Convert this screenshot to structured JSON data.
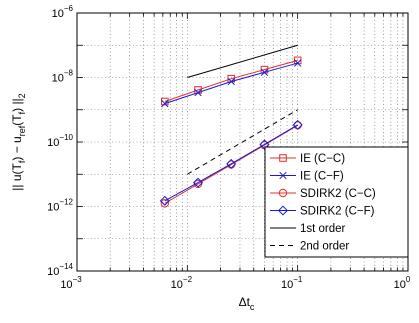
{
  "chart_data": {
    "type": "line",
    "xscale": "log",
    "yscale": "log",
    "xlim": [
      0.001,
      1
    ],
    "ylim": [
      1e-14,
      1e-06
    ],
    "grid": true,
    "legend_position": "lower-right",
    "x_ticks": [
      {
        "value": 0.001,
        "base": "10",
        "exp": "−3"
      },
      {
        "value": 0.01,
        "base": "10",
        "exp": "−2"
      },
      {
        "value": 0.1,
        "base": "10",
        "exp": "−1"
      },
      {
        "value": 1,
        "base": "10",
        "exp": "0"
      }
    ],
    "y_ticks": [
      {
        "value": 1e-14,
        "base": "10",
        "exp": "−14"
      },
      {
        "value": 1e-12,
        "base": "10",
        "exp": "−12"
      },
      {
        "value": 1e-10,
        "base": "10",
        "exp": "−10"
      },
      {
        "value": 1e-08,
        "base": "10",
        "exp": "−8"
      },
      {
        "value": 1e-06,
        "base": "10",
        "exp": "−6"
      }
    ],
    "xlabel": {
      "main": "Δt",
      "sub": "c"
    },
    "ylabel": {
      "part1": "|| u(T",
      "sub1": "f",
      "part2": ") − u",
      "sub2": "ref",
      "part3": "(T",
      "sub3": "f",
      "part4": ") ||",
      "sub4": "2"
    },
    "series": [
      {
        "name": "IE (C−C)",
        "color": "#e03030",
        "marker": "square",
        "dash": "solid",
        "x": [
          0.00625,
          0.0125,
          0.025,
          0.05,
          0.1
        ],
        "y": [
          1.8e-09,
          4.1e-09,
          9.2e-09,
          1.75e-08,
          3.4e-08
        ]
      },
      {
        "name": "IE (C−F)",
        "color": "#1a1ad0",
        "marker": "x",
        "dash": "solid",
        "x": [
          0.00625,
          0.0125,
          0.025,
          0.05,
          0.1
        ],
        "y": [
          1.55e-09,
          3.4e-09,
          7.5e-09,
          1.45e-08,
          2.8e-08
        ]
      },
      {
        "name": "SDIRK2 (C−C)",
        "color": "#e03030",
        "marker": "circle",
        "dash": "solid",
        "x": [
          0.00625,
          0.0125,
          0.025,
          0.05,
          0.1
        ],
        "y": [
          1.25e-12,
          5e-12,
          2e-11,
          8e-11,
          3.3e-10
        ]
      },
      {
        "name": "SDIRK2 (C−F)",
        "color": "#1a1ad0",
        "marker": "diamond",
        "dash": "solid",
        "x": [
          0.00625,
          0.0125,
          0.025,
          0.05,
          0.1
        ],
        "y": [
          1.5e-12,
          5.5e-12,
          2.1e-11,
          8.4e-11,
          3.4e-10
        ]
      },
      {
        "name": "1st order",
        "color": "#000000",
        "marker": "none",
        "dash": "solid",
        "x": [
          0.01,
          0.1
        ],
        "y": [
          1e-08,
          1e-07
        ]
      },
      {
        "name": "2nd order",
        "color": "#000000",
        "marker": "none",
        "dash": "dashed",
        "x": [
          0.01,
          0.1
        ],
        "y": [
          1e-11,
          1e-09
        ]
      }
    ]
  }
}
